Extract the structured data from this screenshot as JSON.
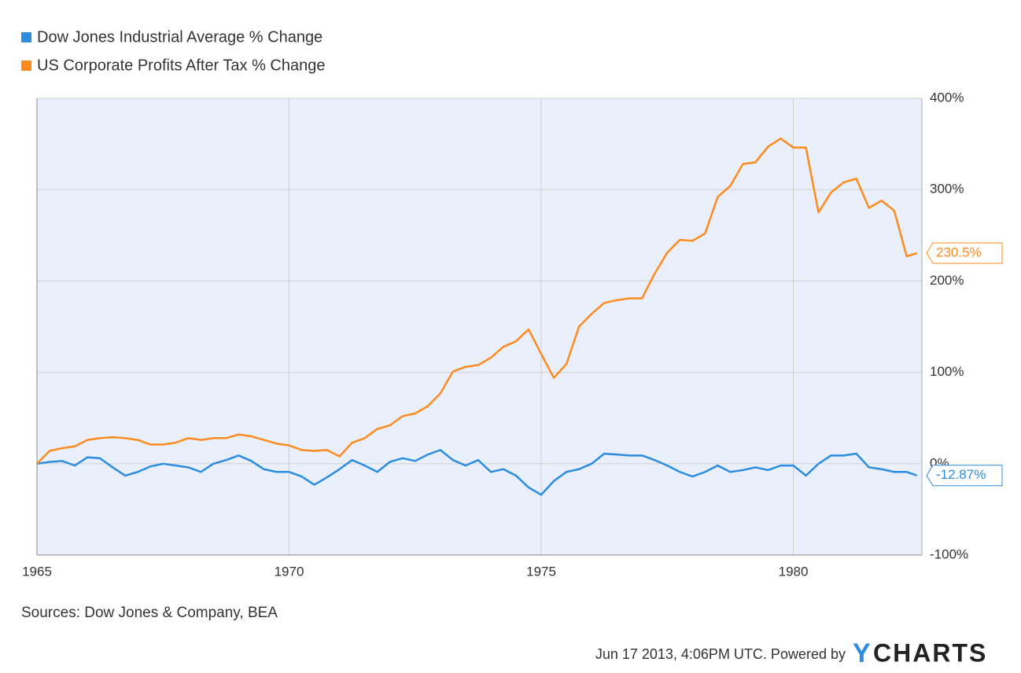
{
  "chart_data": {
    "type": "line",
    "x": [
      1965,
      1965.25,
      1965.5,
      1965.75,
      1966,
      1966.25,
      1966.5,
      1966.75,
      1967,
      1967.25,
      1967.5,
      1967.75,
      1968,
      1968.25,
      1968.5,
      1968.75,
      1969,
      1969.25,
      1969.5,
      1969.75,
      1970,
      1970.25,
      1970.5,
      1970.75,
      1971,
      1971.25,
      1971.5,
      1971.75,
      1972,
      1972.25,
      1972.5,
      1972.75,
      1973,
      1973.25,
      1973.5,
      1973.75,
      1974,
      1974.25,
      1974.5,
      1974.75,
      1975,
      1975.25,
      1975.5,
      1975.75,
      1976,
      1976.25,
      1976.5,
      1976.75,
      1977,
      1977.25,
      1977.5,
      1977.75,
      1978,
      1978.25,
      1978.5,
      1978.75,
      1979,
      1979.25,
      1979.5,
      1979.75,
      1980,
      1980.25,
      1980.5,
      1980.75,
      1981,
      1981.25,
      1981.5,
      1981.75,
      1982,
      1982.25,
      1982.45
    ],
    "series": [
      {
        "name": "Dow Jones Industrial Average % Change",
        "color": "#2b8ce0",
        "values": [
          0,
          2,
          3,
          -2,
          7,
          6,
          -4,
          -13,
          -9,
          -3,
          0,
          -2,
          -4,
          -9,
          0,
          4,
          9,
          3,
          -6,
          -9,
          -9,
          -14,
          -23,
          -15,
          -6,
          4,
          -2,
          -9,
          2,
          6,
          3,
          10,
          15,
          4,
          -2,
          4,
          -9,
          -6,
          -13,
          -26,
          -34,
          -19,
          -9,
          -6,
          0,
          11,
          10,
          9,
          9,
          4,
          -2,
          -9,
          -14,
          -9,
          -2,
          -9,
          -7,
          -4,
          -7,
          -2,
          -2,
          -13,
          0,
          9,
          9,
          11,
          -4,
          -6,
          -9,
          -9,
          -12.87
        ],
        "value_labels": [
          null,
          null,
          null,
          null,
          null,
          null,
          null,
          null,
          null,
          null,
          null,
          null,
          null,
          null,
          null,
          null,
          null,
          null,
          null,
          null,
          null,
          null,
          null,
          null,
          null,
          null,
          null,
          null,
          null,
          null,
          null,
          null,
          null,
          null,
          null,
          null,
          null,
          null,
          null,
          null,
          null,
          null,
          null,
          null,
          null,
          null,
          null,
          null,
          null,
          null,
          null,
          null,
          null,
          null,
          null,
          null,
          null,
          null,
          null,
          null,
          null,
          null,
          null,
          null,
          null,
          null,
          null,
          null,
          null,
          null,
          "-12.87%"
        ]
      },
      {
        "name": "US Corporate Profits After Tax % Change",
        "color": "#ff8a1e",
        "values": [
          0,
          14,
          17,
          19,
          26,
          28,
          29,
          28,
          26,
          21,
          21,
          23,
          28,
          26,
          28,
          28,
          32,
          30,
          26,
          22,
          20,
          15,
          14,
          15,
          8,
          23,
          28,
          38,
          42,
          52,
          55,
          63,
          77,
          101,
          106,
          108,
          116,
          128,
          134,
          147,
          120,
          94,
          109,
          150,
          164,
          176,
          179,
          181,
          181,
          208,
          231,
          245,
          244,
          252,
          292,
          304,
          328,
          330,
          347,
          356,
          346,
          346,
          275,
          297,
          308,
          312,
          280,
          288,
          277,
          227,
          230.5
        ],
        "value_labels": [
          null,
          null,
          null,
          null,
          null,
          null,
          null,
          null,
          null,
          null,
          null,
          null,
          null,
          null,
          null,
          null,
          null,
          null,
          null,
          null,
          null,
          null,
          null,
          null,
          null,
          null,
          null,
          null,
          null,
          null,
          null,
          null,
          null,
          null,
          null,
          null,
          null,
          null,
          null,
          null,
          null,
          null,
          null,
          null,
          null,
          null,
          null,
          null,
          null,
          null,
          null,
          null,
          null,
          null,
          null,
          null,
          null,
          null,
          null,
          null,
          null,
          null,
          null,
          null,
          null,
          null,
          null,
          null,
          null,
          null,
          "230.5%"
        ]
      }
    ],
    "xlim": [
      1965,
      1982.55
    ],
    "xticks": [
      1965,
      1970,
      1975,
      1980
    ],
    "ylim": [
      -100,
      400
    ],
    "yticks": [
      {
        "value": -100,
        "label": "-100%"
      },
      {
        "value": 0,
        "label": "0%"
      },
      {
        "value": 100,
        "label": "100%"
      },
      {
        "value": 200,
        "label": "200%"
      },
      {
        "value": 300,
        "label": "300%"
      },
      {
        "value": 400,
        "label": "400%"
      }
    ],
    "grid": true,
    "legend": "top-left",
    "source": "Sources: Dow Jones & Company, BEA",
    "timestamp": "Jun 17 2013, 4:06PM UTC. Powered by",
    "logo": {
      "mark": "Y",
      "text": "CHARTS"
    }
  }
}
